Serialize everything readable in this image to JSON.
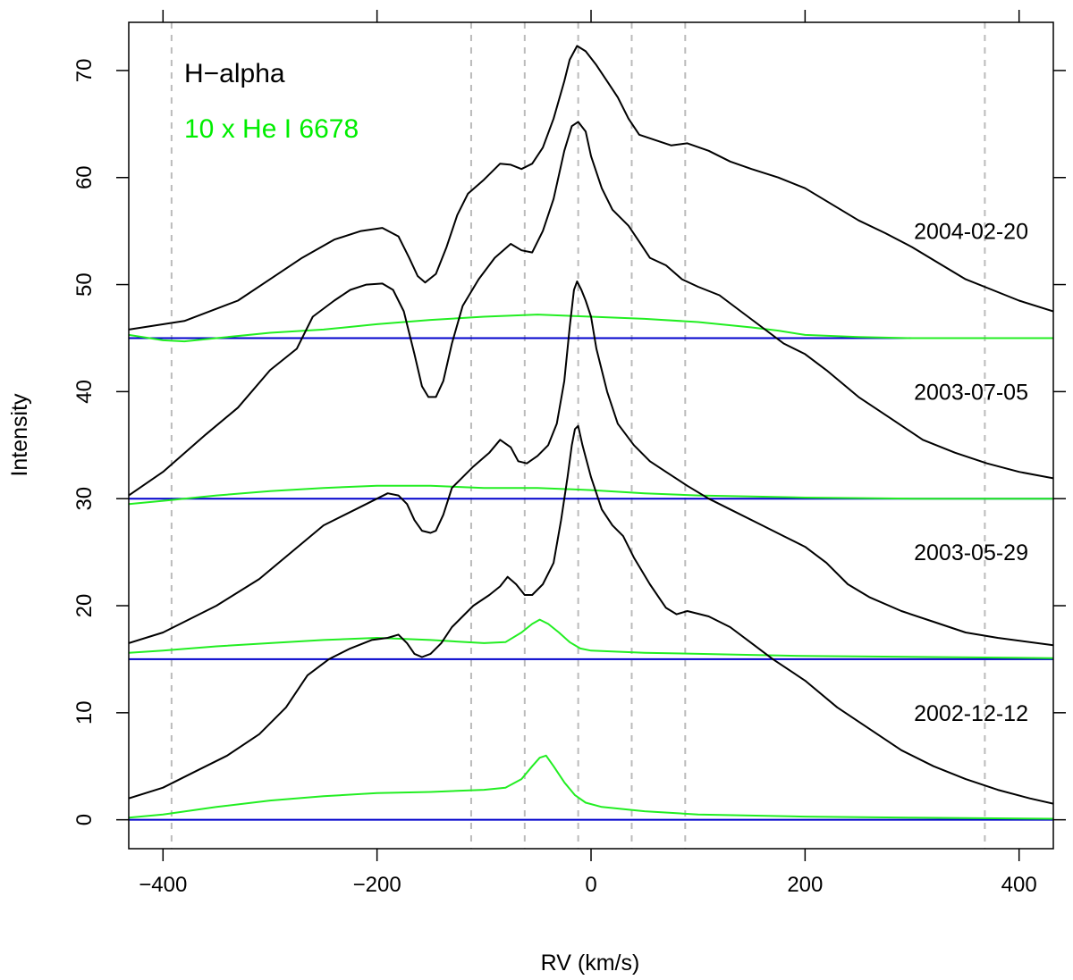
{
  "chart_data": {
    "type": "line",
    "title": "",
    "xlabel": "RV (km/s)",
    "ylabel": "Intensity",
    "xlim": [
      -432,
      432
    ],
    "ylim": [
      -2.7,
      74.5
    ],
    "x_ticks": [
      -400,
      -200,
      0,
      200,
      400
    ],
    "x_tick_labels": [
      "−400",
      "−200",
      "0",
      "200",
      "400"
    ],
    "y_ticks": [
      0,
      10,
      20,
      30,
      40,
      50,
      60,
      70
    ],
    "y_tick_labels": [
      "0",
      "10",
      "20",
      "30",
      "40",
      "50",
      "60",
      "70"
    ],
    "reference_lines_x": [
      -392,
      -112,
      -62,
      -12,
      38,
      88,
      368
    ],
    "legend": [
      {
        "label": "H−alpha",
        "color": "#000000"
      },
      {
        "label": "10 x He I 6678",
        "color": "#00ee00"
      }
    ],
    "colors": {
      "halpha": "#000000",
      "hei": "#22ee22",
      "baseline": "#0000cc",
      "grid": "#bbbbbb"
    },
    "epochs": [
      {
        "date": "2004-02-20",
        "baseline": 45,
        "label_y": 55,
        "halpha": [
          [
            -432,
            45.8
          ],
          [
            -380,
            46.6
          ],
          [
            -330,
            48.5
          ],
          [
            -300,
            50.5
          ],
          [
            -270,
            52.5
          ],
          [
            -240,
            54.2
          ],
          [
            -215,
            55.0
          ],
          [
            -195,
            55.3
          ],
          [
            -180,
            54.5
          ],
          [
            -170,
            52.5
          ],
          [
            -162,
            50.8
          ],
          [
            -155,
            50.2
          ],
          [
            -145,
            51.0
          ],
          [
            -135,
            53.5
          ],
          [
            -125,
            56.5
          ],
          [
            -115,
            58.5
          ],
          [
            -100,
            59.8
          ],
          [
            -85,
            61.3
          ],
          [
            -75,
            61.2
          ],
          [
            -65,
            60.8
          ],
          [
            -55,
            61.3
          ],
          [
            -45,
            62.8
          ],
          [
            -35,
            65.5
          ],
          [
            -25,
            69.0
          ],
          [
            -20,
            71.0
          ],
          [
            -13,
            72.3
          ],
          [
            -5,
            71.8
          ],
          [
            5,
            70.5
          ],
          [
            15,
            69.0
          ],
          [
            25,
            67.5
          ],
          [
            35,
            65.5
          ],
          [
            45,
            64.0
          ],
          [
            60,
            63.5
          ],
          [
            75,
            63.0
          ],
          [
            90,
            63.2
          ],
          [
            110,
            62.5
          ],
          [
            130,
            61.5
          ],
          [
            150,
            60.8
          ],
          [
            175,
            60.0
          ],
          [
            200,
            59.0
          ],
          [
            225,
            57.5
          ],
          [
            250,
            56.0
          ],
          [
            275,
            54.8
          ],
          [
            300,
            53.5
          ],
          [
            325,
            52.0
          ],
          [
            350,
            50.5
          ],
          [
            375,
            49.5
          ],
          [
            400,
            48.5
          ],
          [
            432,
            47.5
          ]
        ],
        "hei": [
          [
            -432,
            45.3
          ],
          [
            -400,
            44.8
          ],
          [
            -380,
            44.7
          ],
          [
            -350,
            45.0
          ],
          [
            -300,
            45.5
          ],
          [
            -250,
            45.8
          ],
          [
            -200,
            46.3
          ],
          [
            -150,
            46.7
          ],
          [
            -100,
            47.0
          ],
          [
            -50,
            47.2
          ],
          [
            0,
            47.0
          ],
          [
            50,
            46.8
          ],
          [
            100,
            46.5
          ],
          [
            150,
            46.0
          ],
          [
            175,
            45.7
          ],
          [
            200,
            45.3
          ],
          [
            250,
            45.1
          ],
          [
            300,
            45.0
          ],
          [
            432,
            45.0
          ]
        ]
      },
      {
        "date": "2003-07-05",
        "baseline": 30,
        "label_y": 40,
        "halpha": [
          [
            -432,
            30.3
          ],
          [
            -400,
            32.5
          ],
          [
            -360,
            36.0
          ],
          [
            -330,
            38.5
          ],
          [
            -300,
            42.0
          ],
          [
            -275,
            44.0
          ],
          [
            -260,
            47.0
          ],
          [
            -240,
            48.5
          ],
          [
            -225,
            49.5
          ],
          [
            -210,
            50.0
          ],
          [
            -195,
            50.1
          ],
          [
            -185,
            49.5
          ],
          [
            -175,
            47.5
          ],
          [
            -165,
            43.5
          ],
          [
            -158,
            40.5
          ],
          [
            -152,
            39.5
          ],
          [
            -145,
            39.5
          ],
          [
            -138,
            41.0
          ],
          [
            -130,
            44.5
          ],
          [
            -120,
            48.0
          ],
          [
            -105,
            50.5
          ],
          [
            -90,
            52.5
          ],
          [
            -75,
            53.8
          ],
          [
            -65,
            53.2
          ],
          [
            -55,
            53.0
          ],
          [
            -45,
            55.0
          ],
          [
            -35,
            58.0
          ],
          [
            -25,
            62.5
          ],
          [
            -18,
            64.8
          ],
          [
            -12,
            65.2
          ],
          [
            -5,
            64.3
          ],
          [
            0,
            62.0
          ],
          [
            10,
            59.0
          ],
          [
            20,
            57.0
          ],
          [
            35,
            55.5
          ],
          [
            45,
            54.0
          ],
          [
            55,
            52.5
          ],
          [
            70,
            51.8
          ],
          [
            85,
            50.5
          ],
          [
            100,
            49.8
          ],
          [
            120,
            49.0
          ],
          [
            140,
            47.5
          ],
          [
            160,
            46.0
          ],
          [
            180,
            44.5
          ],
          [
            200,
            43.5
          ],
          [
            220,
            42.0
          ],
          [
            250,
            39.5
          ],
          [
            280,
            37.5
          ],
          [
            310,
            35.5
          ],
          [
            340,
            34.3
          ],
          [
            370,
            33.3
          ],
          [
            400,
            32.5
          ],
          [
            432,
            31.9
          ]
        ],
        "hei": [
          [
            -432,
            29.5
          ],
          [
            -400,
            29.8
          ],
          [
            -350,
            30.3
          ],
          [
            -300,
            30.7
          ],
          [
            -250,
            31.0
          ],
          [
            -200,
            31.2
          ],
          [
            -150,
            31.2
          ],
          [
            -100,
            31.0
          ],
          [
            -50,
            31.0
          ],
          [
            0,
            30.8
          ],
          [
            50,
            30.5
          ],
          [
            100,
            30.3
          ],
          [
            150,
            30.2
          ],
          [
            200,
            30.1
          ],
          [
            300,
            30.0
          ],
          [
            432,
            30.0
          ]
        ]
      },
      {
        "date": "2003-05-29",
        "baseline": 15,
        "label_y": 25,
        "halpha": [
          [
            -432,
            16.5
          ],
          [
            -400,
            17.5
          ],
          [
            -350,
            20.0
          ],
          [
            -310,
            22.5
          ],
          [
            -280,
            25.0
          ],
          [
            -250,
            27.5
          ],
          [
            -220,
            29.0
          ],
          [
            -200,
            30.0
          ],
          [
            -190,
            30.5
          ],
          [
            -180,
            30.3
          ],
          [
            -172,
            29.5
          ],
          [
            -165,
            28.0
          ],
          [
            -158,
            27.0
          ],
          [
            -150,
            26.8
          ],
          [
            -145,
            27.0
          ],
          [
            -138,
            28.5
          ],
          [
            -130,
            31.0
          ],
          [
            -120,
            32.0
          ],
          [
            -110,
            33.0
          ],
          [
            -95,
            34.3
          ],
          [
            -85,
            35.5
          ],
          [
            -75,
            34.8
          ],
          [
            -68,
            33.5
          ],
          [
            -60,
            33.3
          ],
          [
            -50,
            34.0
          ],
          [
            -40,
            35.0
          ],
          [
            -32,
            37.0
          ],
          [
            -25,
            41.0
          ],
          [
            -20,
            46.0
          ],
          [
            -16,
            49.5
          ],
          [
            -13,
            50.3
          ],
          [
            -9,
            49.5
          ],
          [
            -5,
            48.5
          ],
          [
            0,
            47.0
          ],
          [
            5,
            44.0
          ],
          [
            15,
            40.0
          ],
          [
            25,
            37.0
          ],
          [
            40,
            35.0
          ],
          [
            55,
            33.5
          ],
          [
            70,
            32.5
          ],
          [
            90,
            31.2
          ],
          [
            110,
            30.0
          ],
          [
            130,
            29.0
          ],
          [
            160,
            27.5
          ],
          [
            180,
            26.5
          ],
          [
            200,
            25.5
          ],
          [
            220,
            24.0
          ],
          [
            240,
            22.0
          ],
          [
            260,
            20.8
          ],
          [
            290,
            19.5
          ],
          [
            320,
            18.5
          ],
          [
            350,
            17.5
          ],
          [
            380,
            17.0
          ],
          [
            432,
            16.3
          ]
        ],
        "hei": [
          [
            -432,
            15.6
          ],
          [
            -400,
            15.8
          ],
          [
            -350,
            16.2
          ],
          [
            -300,
            16.5
          ],
          [
            -250,
            16.8
          ],
          [
            -200,
            17.0
          ],
          [
            -150,
            16.8
          ],
          [
            -100,
            16.5
          ],
          [
            -80,
            16.6
          ],
          [
            -65,
            17.5
          ],
          [
            -55,
            18.3
          ],
          [
            -48,
            18.7
          ],
          [
            -40,
            18.3
          ],
          [
            -30,
            17.5
          ],
          [
            -20,
            16.6
          ],
          [
            -10,
            16.0
          ],
          [
            0,
            15.8
          ],
          [
            50,
            15.6
          ],
          [
            100,
            15.5
          ],
          [
            150,
            15.4
          ],
          [
            200,
            15.3
          ],
          [
            432,
            15.1
          ]
        ]
      },
      {
        "date": "2002-12-12",
        "baseline": 0,
        "label_y": 10,
        "halpha": [
          [
            -432,
            2.0
          ],
          [
            -400,
            3.0
          ],
          [
            -370,
            4.5
          ],
          [
            -340,
            6.0
          ],
          [
            -310,
            8.0
          ],
          [
            -285,
            10.5
          ],
          [
            -265,
            13.5
          ],
          [
            -245,
            15.0
          ],
          [
            -225,
            16.0
          ],
          [
            -205,
            16.8
          ],
          [
            -190,
            17.0
          ],
          [
            -180,
            17.3
          ],
          [
            -172,
            16.5
          ],
          [
            -165,
            15.5
          ],
          [
            -158,
            15.2
          ],
          [
            -150,
            15.5
          ],
          [
            -140,
            16.5
          ],
          [
            -130,
            18.0
          ],
          [
            -120,
            19.0
          ],
          [
            -110,
            20.0
          ],
          [
            -95,
            21.0
          ],
          [
            -85,
            21.8
          ],
          [
            -78,
            22.7
          ],
          [
            -70,
            22.0
          ],
          [
            -62,
            21.0
          ],
          [
            -55,
            21.0
          ],
          [
            -45,
            22.0
          ],
          [
            -35,
            24.0
          ],
          [
            -28,
            28.0
          ],
          [
            -22,
            32.0
          ],
          [
            -18,
            35.0
          ],
          [
            -15,
            36.5
          ],
          [
            -12,
            36.8
          ],
          [
            -8,
            35.0
          ],
          [
            0,
            32.0
          ],
          [
            10,
            29.0
          ],
          [
            20,
            27.5
          ],
          [
            30,
            26.5
          ],
          [
            40,
            24.5
          ],
          [
            55,
            22.0
          ],
          [
            70,
            19.8
          ],
          [
            80,
            19.2
          ],
          [
            90,
            19.5
          ],
          [
            110,
            19.0
          ],
          [
            130,
            18.0
          ],
          [
            150,
            16.5
          ],
          [
            170,
            15.0
          ],
          [
            200,
            13.0
          ],
          [
            230,
            10.5
          ],
          [
            260,
            8.5
          ],
          [
            290,
            6.5
          ],
          [
            320,
            5.0
          ],
          [
            350,
            3.8
          ],
          [
            380,
            2.8
          ],
          [
            410,
            2.0
          ],
          [
            432,
            1.5
          ]
        ],
        "hei": [
          [
            -432,
            0.2
          ],
          [
            -400,
            0.5
          ],
          [
            -350,
            1.2
          ],
          [
            -300,
            1.8
          ],
          [
            -250,
            2.2
          ],
          [
            -200,
            2.5
          ],
          [
            -150,
            2.6
          ],
          [
            -100,
            2.8
          ],
          [
            -80,
            3.0
          ],
          [
            -65,
            3.8
          ],
          [
            -55,
            5.0
          ],
          [
            -48,
            5.8
          ],
          [
            -42,
            6.0
          ],
          [
            -35,
            5.0
          ],
          [
            -25,
            3.5
          ],
          [
            -15,
            2.3
          ],
          [
            -5,
            1.6
          ],
          [
            10,
            1.2
          ],
          [
            50,
            0.8
          ],
          [
            100,
            0.5
          ],
          [
            200,
            0.3
          ],
          [
            300,
            0.2
          ],
          [
            432,
            0.1
          ]
        ]
      }
    ]
  }
}
